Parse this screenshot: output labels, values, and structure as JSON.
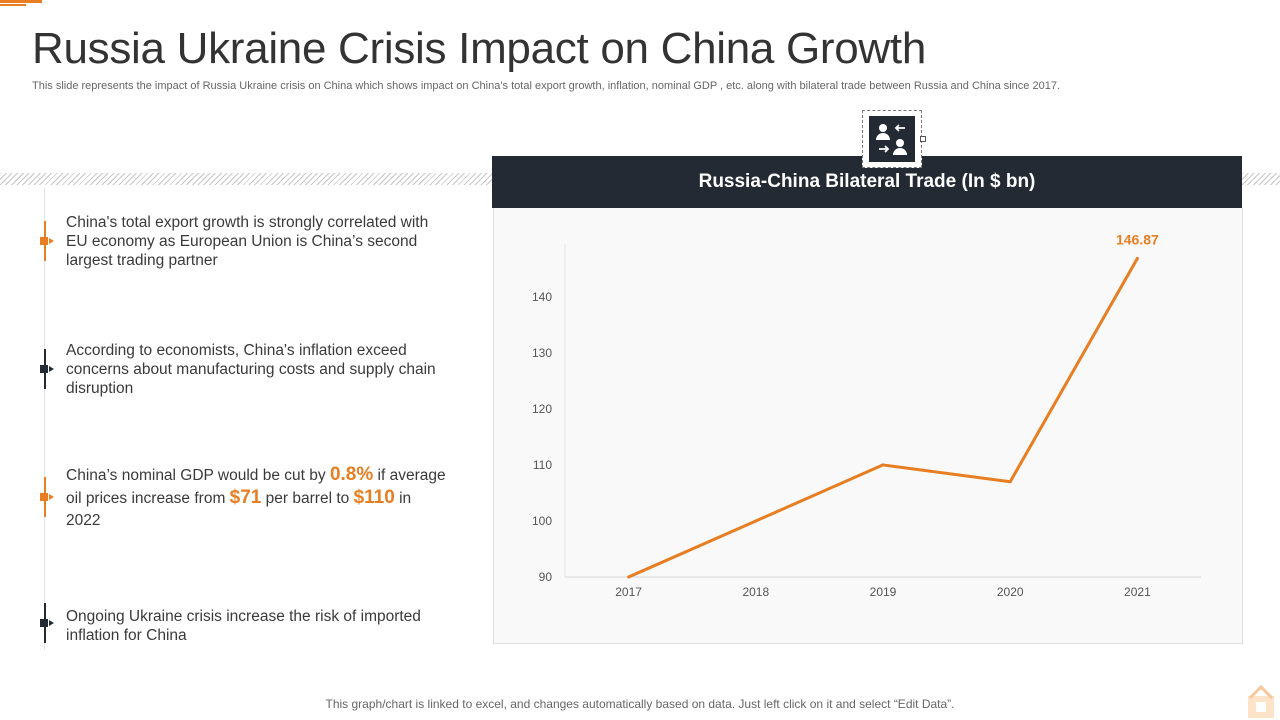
{
  "header": {
    "title": "Russia Ukraine Crisis Impact on China Growth",
    "subtitle": "This slide represents the impact of Russia Ukraine crisis on China which shows impact on China’s total export growth, inflation, nominal GDP , etc. along with bilateral trade between Russia and China since 2017."
  },
  "points": [
    {
      "text": "China's total export growth is strongly correlated with EU economy as European Union is China’s second largest trading partner"
    },
    {
      "text": "According to economists, China's inflation exceed concerns about manufacturing  costs and supply chain disruption"
    },
    {
      "part1": "China’s nominal GDP would be cut by ",
      "hl1": "0.8%",
      "part2": " if average oil prices increase from ",
      "hl2": "$71",
      "part3": " per barrel to ",
      "hl3": "$110",
      "part4": " in 2022"
    },
    {
      "text": "Ongoing Ukraine crisis increase the risk of imported inflation for China"
    }
  ],
  "icons": {
    "chart_badge": "people-exchange-icon",
    "corner": "logo-icon"
  },
  "colors": {
    "accent": "#e87e22",
    "dark": "#232a33"
  },
  "footnote": "This graph/chart is linked to excel, and changes automatically based on data. Just left click on it and select “Edit Data”.",
  "chart_data": {
    "type": "line",
    "title": "Russia-China Bilateral Trade (In $ bn)",
    "categories": [
      "2017",
      "2018",
      "2019",
      "2020",
      "2021"
    ],
    "series": [
      {
        "name": "Bilateral Trade",
        "values": [
          90,
          100,
          110,
          107,
          146.87
        ]
      }
    ],
    "data_labels": [
      {
        "category": "2021",
        "text": "146.87"
      }
    ],
    "yticks": [
      90,
      100,
      110,
      120,
      130,
      140
    ],
    "ylim": [
      90,
      148
    ],
    "xlabel": "",
    "ylabel": "",
    "grid": false
  }
}
